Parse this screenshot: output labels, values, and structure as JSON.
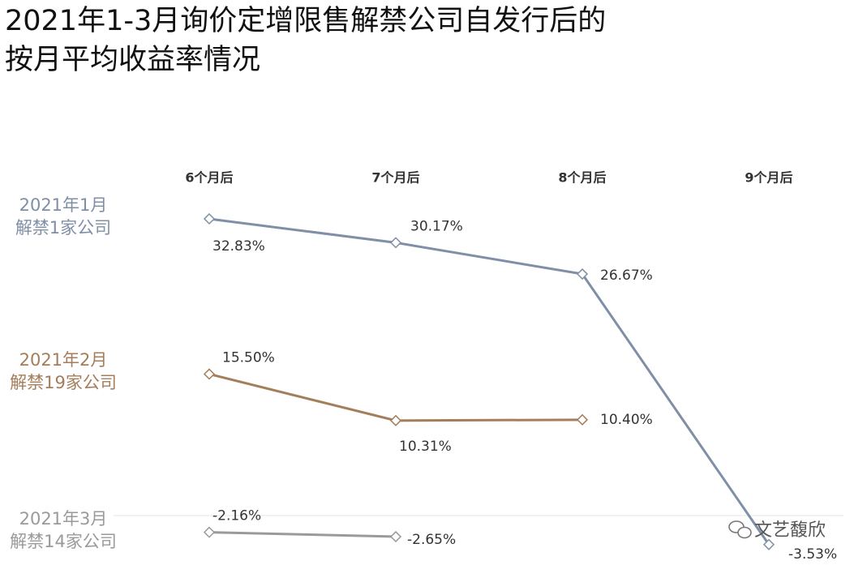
{
  "chart_data": {
    "type": "line",
    "title": "2021年1-3月询价定增限售解禁公司自发行后的\n按月平均收益率情况",
    "categories": [
      "6个月后",
      "7个月后",
      "8个月后",
      "9个月后"
    ],
    "ylim": [
      -5,
      35
    ],
    "series": [
      {
        "name": "2021年1月\n解禁1家公司",
        "color": "#7f8fa6",
        "values": [
          32.83,
          30.17,
          26.67,
          -3.53
        ],
        "value_labels": [
          "32.83%",
          "30.17%",
          "26.67%",
          "-3.53%"
        ]
      },
      {
        "name": "2021年2月\n解禁19家公司",
        "color": "#a47d5a",
        "values": [
          15.5,
          10.31,
          10.4,
          null
        ],
        "value_labels": [
          "15.50%",
          "10.31%",
          "10.40%",
          null
        ]
      },
      {
        "name": "2021年3月\n解禁14家公司",
        "color": "#9a9a9a",
        "values": [
          -2.16,
          -2.65,
          null,
          null
        ],
        "value_labels": [
          "-2.16%",
          "-2.65%",
          null,
          null
        ]
      }
    ],
    "watermark": "文艺馥欣"
  }
}
